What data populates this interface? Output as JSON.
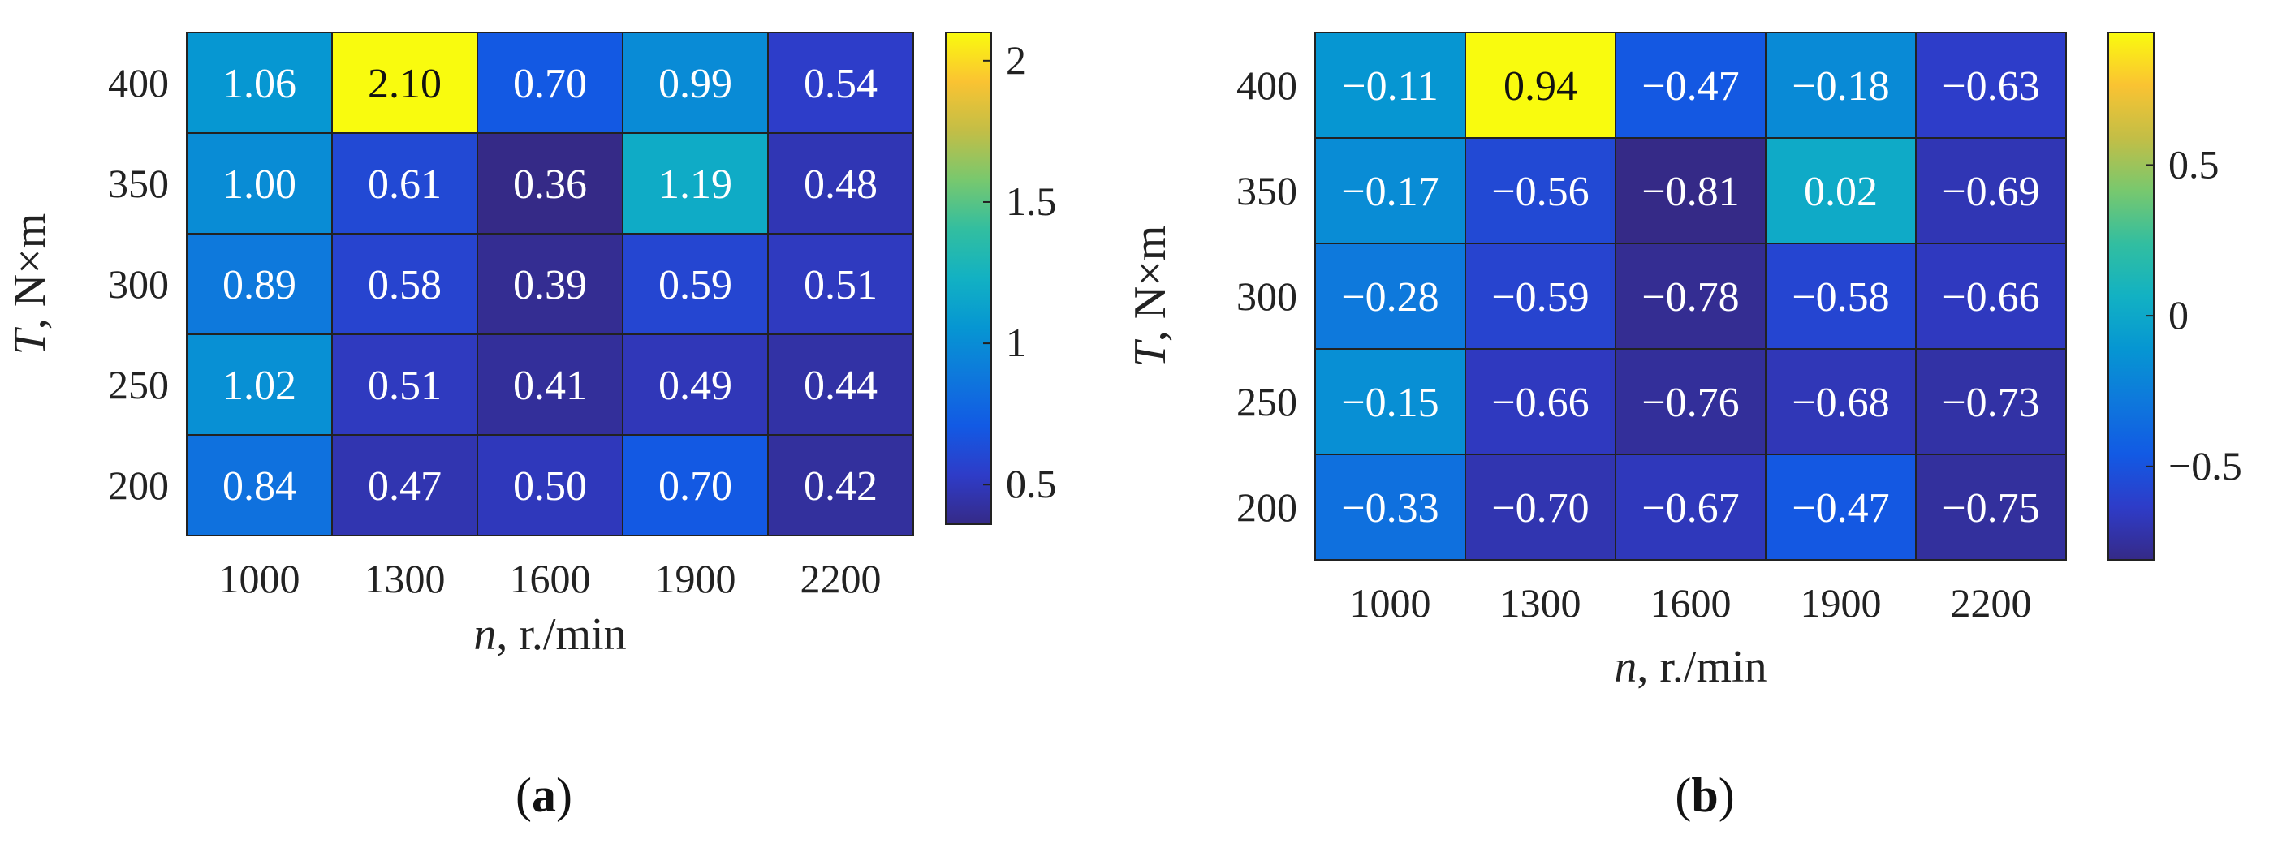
{
  "chart_data": [
    {
      "type": "heatmap",
      "panel_label": "(a)",
      "panel_label_parts": [
        "(",
        "a",
        ")"
      ],
      "x_categories": [
        "1000",
        "1300",
        "1600",
        "1900",
        "2200"
      ],
      "y_categories": [
        "400",
        "350",
        "300",
        "250",
        "200"
      ],
      "xlabel": "n, r./min",
      "xlabel_parts": [
        "n",
        ", r./min"
      ],
      "ylabel": "T, N×m",
      "ylabel_parts": [
        "T",
        ", N×m"
      ],
      "values": [
        [
          1.06,
          2.1,
          0.7,
          0.99,
          0.54
        ],
        [
          1.0,
          0.61,
          0.36,
          1.19,
          0.48
        ],
        [
          0.89,
          0.58,
          0.39,
          0.59,
          0.51
        ],
        [
          1.02,
          0.51,
          0.41,
          0.49,
          0.44
        ],
        [
          0.84,
          0.47,
          0.5,
          0.7,
          0.42
        ]
      ],
      "cell_labels": [
        [
          "1.06",
          "2.10",
          "0.70",
          "0.99",
          "0.54"
        ],
        [
          "1.00",
          "0.61",
          "0.36",
          "1.19",
          "0.48"
        ],
        [
          "0.89",
          "0.58",
          "0.39",
          "0.59",
          "0.51"
        ],
        [
          "1.02",
          "0.51",
          "0.41",
          "0.49",
          "0.44"
        ],
        [
          "0.84",
          "0.47",
          "0.50",
          "0.70",
          "0.42"
        ]
      ],
      "color_range": [
        0.36,
        2.1
      ],
      "colorbar_ticks": [
        0.5,
        1,
        1.5,
        2
      ],
      "colorbar_tick_labels": [
        "0.5",
        "1",
        "1.5",
        "2"
      ],
      "colormap": "parula"
    },
    {
      "type": "heatmap",
      "panel_label": "(b)",
      "panel_label_parts": [
        "(",
        "b",
        ")"
      ],
      "x_categories": [
        "1000",
        "1300",
        "1600",
        "1900",
        "2200"
      ],
      "y_categories": [
        "400",
        "350",
        "300",
        "250",
        "200"
      ],
      "xlabel": "n, r./min",
      "xlabel_parts": [
        "n",
        ", r./min"
      ],
      "ylabel": "T, N×m",
      "ylabel_parts": [
        "T",
        ", N×m"
      ],
      "values": [
        [
          -0.11,
          0.94,
          -0.47,
          -0.18,
          -0.63
        ],
        [
          -0.17,
          -0.56,
          -0.81,
          0.02,
          -0.69
        ],
        [
          -0.28,
          -0.59,
          -0.78,
          -0.58,
          -0.66
        ],
        [
          -0.15,
          -0.66,
          -0.76,
          -0.68,
          -0.73
        ],
        [
          -0.33,
          -0.7,
          -0.67,
          -0.47,
          -0.75
        ]
      ],
      "cell_labels": [
        [
          "−0.11",
          "0.94",
          "−0.47",
          "−0.18",
          "−0.63"
        ],
        [
          "−0.17",
          "−0.56",
          "−0.81",
          "0.02",
          "−0.69"
        ],
        [
          "−0.28",
          "−0.59",
          "−0.78",
          "−0.58",
          "−0.66"
        ],
        [
          "−0.15",
          "−0.66",
          "−0.76",
          "−0.68",
          "−0.73"
        ],
        [
          "−0.33",
          "−0.70",
          "−0.67",
          "−0.47",
          "−0.75"
        ]
      ],
      "color_range": [
        -0.81,
        0.94
      ],
      "colorbar_ticks": [
        -0.5,
        0,
        0.5
      ],
      "colorbar_tick_labels": [
        "−0.5",
        "0",
        "0.5"
      ],
      "colormap": "parula"
    }
  ]
}
